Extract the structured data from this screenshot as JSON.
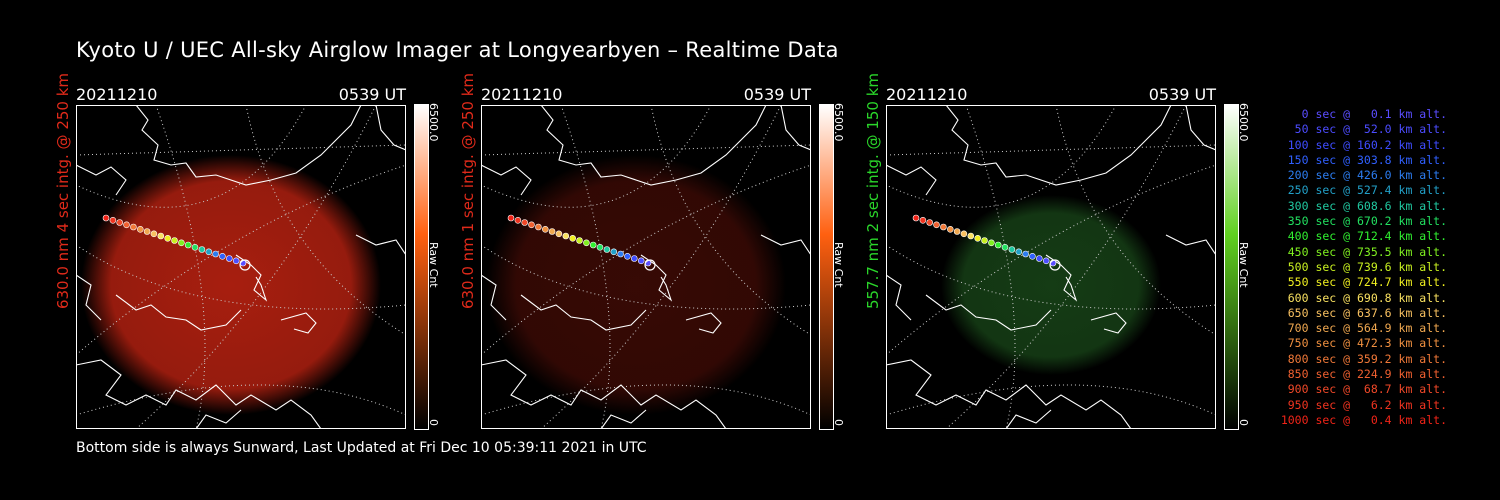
{
  "title": "Kyoto U / UEC All-sky Airglow Imager at Longyearbyen – Realtime Data",
  "footer": "Bottom side is always Sunward, Last Updated at Fri Dec 10 05:39:11 2021 in UTC",
  "panels": [
    {
      "date": "20211210",
      "time": "0539 UT",
      "side_label": "630.0 nm 4 sec intg. @ 250 km",
      "label_color": "#e02a1a",
      "tint": "#b02010",
      "colorbar_top": "6500.0",
      "colorbar_bottom": "0",
      "colorbar_unit": "Raw Cnt",
      "colorbar_color": "#ff6010"
    },
    {
      "date": "20211210",
      "time": "0539 UT",
      "side_label": "630.0 nm 1 sec intg. @ 250 km",
      "label_color": "#e02a1a",
      "tint": "#3a0a05",
      "colorbar_top": "6500.0",
      "colorbar_bottom": "0",
      "colorbar_unit": "Raw Cnt",
      "colorbar_color": "#ff6010"
    },
    {
      "date": "20211210",
      "time": "0539 UT",
      "side_label": "557.7 nm 2 sec intg. @ 150 km",
      "label_color": "#2ad62a",
      "tint": "#163f16",
      "colorbar_top": "6500.0",
      "colorbar_bottom": "0",
      "colorbar_unit": "Raw Cnt",
      "colorbar_color": "#60d020"
    }
  ],
  "legend": [
    {
      "text": "0 sec @   0.1 km alt.",
      "color": "#5a4dff"
    },
    {
      "text": "50 sec @  52.0 km alt.",
      "color": "#4c4cff"
    },
    {
      "text": "100 sec @ 160.2 km alt.",
      "color": "#3e4cff"
    },
    {
      "text": "150 sec @ 303.8 km alt.",
      "color": "#3060ff"
    },
    {
      "text": "200 sec @ 426.0 km alt.",
      "color": "#2c7cf0"
    },
    {
      "text": "250 sec @ 527.4 km alt.",
      "color": "#22a0c8"
    },
    {
      "text": "300 sec @ 608.6 km alt.",
      "color": "#20c8a0"
    },
    {
      "text": "350 sec @ 670.2 km alt.",
      "color": "#22e060"
    },
    {
      "text": "400 sec @ 712.4 km alt.",
      "color": "#30f030"
    },
    {
      "text": "450 sec @ 735.5 km alt.",
      "color": "#80f020"
    },
    {
      "text": "500 sec @ 739.6 km alt.",
      "color": "#c8f020"
    },
    {
      "text": "550 sec @ 724.7 km alt.",
      "color": "#f0f020"
    },
    {
      "text": "600 sec @ 690.8 km alt.",
      "color": "#f8e060"
    },
    {
      "text": "650 sec @ 637.6 km alt.",
      "color": "#f8c060"
    },
    {
      "text": "700 sec @ 564.9 km alt.",
      "color": "#f0a850"
    },
    {
      "text": "750 sec @ 472.3 km alt.",
      "color": "#f09040"
    },
    {
      "text": "800 sec @ 359.2 km alt.",
      "color": "#f07838"
    },
    {
      "text": "850 sec @ 224.9 km alt.",
      "color": "#f06030"
    },
    {
      "text": "900 sec @  68.7 km alt.",
      "color": "#f04828"
    },
    {
      "text": "950 sec @   6.2 km alt.",
      "color": "#f03420"
    },
    {
      "text": "1000 sec @   0.4 km alt.",
      "color": "#f02418"
    }
  ]
}
